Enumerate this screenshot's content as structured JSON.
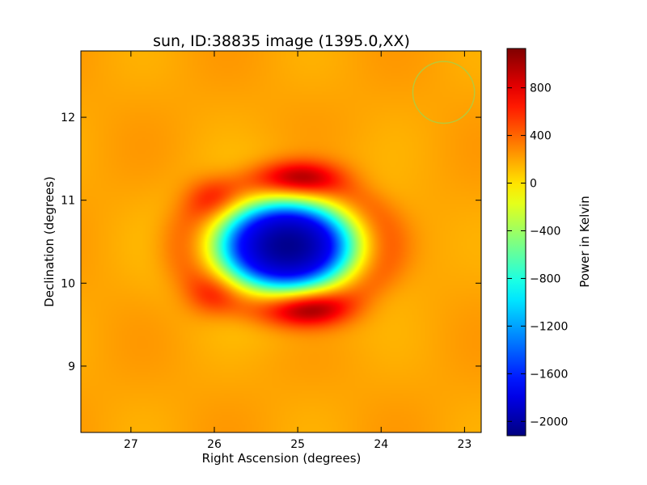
{
  "chart_data": {
    "type": "heatmap",
    "title": "sun, ID:38835 image (1395.0,XX)",
    "xlabel": "Right Ascension (degrees)",
    "ylabel": "Declination (degrees)",
    "xlim": [
      27.6,
      22.8
    ],
    "ylim": [
      8.2,
      12.8
    ],
    "x_ticks": [
      27,
      26,
      25,
      24,
      23
    ],
    "y_ticks": [
      9,
      10,
      11,
      12
    ],
    "grid": false,
    "colormap": "jet",
    "colorbar": {
      "label": "Power in Kelvin",
      "range": [
        -2120,
        1130
      ],
      "ticks": [
        -2000,
        -1600,
        -1200,
        -800,
        -400,
        0,
        400,
        800
      ]
    },
    "background_level": 200,
    "features": [
      {
        "name": "central minimum",
        "ra": 25.15,
        "dec": 10.45,
        "value": -2050
      },
      {
        "name": "northern lobe",
        "ra": 24.95,
        "dec": 11.28,
        "value": 1000
      },
      {
        "name": "southern lobe",
        "ra": 24.85,
        "dec": 9.68,
        "value": 1050
      },
      {
        "name": "north-east lobe",
        "ra": 26.05,
        "dec": 11.05,
        "value": 650
      },
      {
        "name": "south-east lobe",
        "ra": 26.05,
        "dec": 9.83,
        "value": 650
      }
    ],
    "beam": {
      "ra": 23.25,
      "dec": 12.3,
      "radius_deg": 0.37,
      "color": "#b8c83a"
    }
  }
}
